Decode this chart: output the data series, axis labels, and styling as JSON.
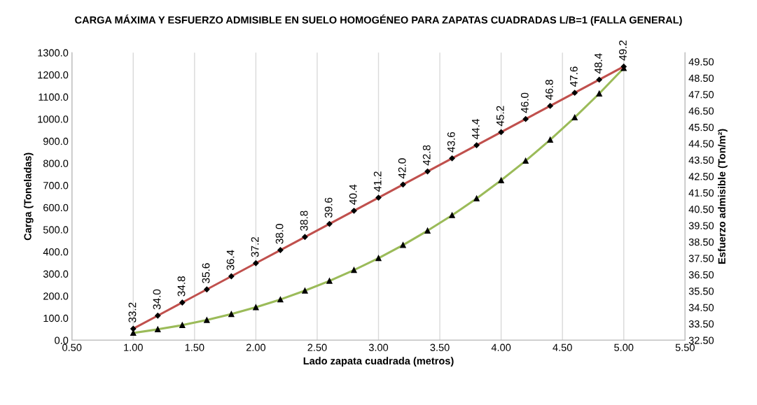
{
  "chart_data": {
    "type": "line",
    "title": "CARGA MÁXIMA Y ESFUERZO ADMISIBLE EN SUELO HOMOGÉNEO PARA ZAPATAS CUADRADAS L/B=1 (FALLA GENERAL)",
    "xlabel": "Lado zapata cuadrada (metros)",
    "ylabel": "Carga (Toneladas)",
    "y2label": "Esfuerzo admisible (Ton/m²)",
    "x": [
      1.0,
      1.2,
      1.4,
      1.6,
      1.8,
      2.0,
      2.2,
      2.4,
      2.6,
      2.8,
      3.0,
      3.2,
      3.4,
      3.6,
      3.8,
      4.0,
      4.2,
      4.4,
      4.6,
      4.8,
      5.0
    ],
    "series": [
      {
        "color": "#9bbb59",
        "marker": "triangle",
        "values": [
          33,
          49,
          68,
          91,
          118,
          149,
          184,
          224,
          268,
          317,
          371,
          430,
          495,
          565,
          641,
          723,
          811,
          906,
          1007,
          1115,
          1230
        ]
      },
      {
        "color": "#c0504d",
        "marker": "diamond",
        "axis": "y2",
        "value_labels": [
          "33.2",
          "34.0",
          "34.8",
          "35.6",
          "36.4",
          "37.2",
          "38.0",
          "38.8",
          "39.6",
          "40.4",
          "41.2",
          "42.0",
          "42.8",
          "43.6",
          "44.4",
          "45.2",
          "46.0",
          "46.8",
          "47.6",
          "48.4",
          "49.2"
        ],
        "values": [
          33.2,
          34.0,
          34.8,
          35.6,
          36.4,
          37.2,
          38.0,
          38.8,
          39.6,
          40.4,
          41.2,
          42.0,
          42.8,
          43.6,
          44.4,
          45.2,
          46.0,
          46.8,
          47.6,
          48.4,
          49.2
        ]
      }
    ],
    "xlim": [
      0.5,
      5.5
    ],
    "xticks": [
      {
        "value": 0.5,
        "label": "0.50"
      },
      {
        "value": 1.0,
        "label": "1.00"
      },
      {
        "value": 1.5,
        "label": "1.50"
      },
      {
        "value": 2.0,
        "label": "2.00"
      },
      {
        "value": 2.5,
        "label": "2.50"
      },
      {
        "value": 3.0,
        "label": "3.00"
      },
      {
        "value": 3.5,
        "label": "3.50"
      },
      {
        "value": 4.0,
        "label": "4.00"
      },
      {
        "value": 4.5,
        "label": "4.50"
      },
      {
        "value": 5.0,
        "label": "5.00"
      },
      {
        "value": 5.5,
        "label": "5.50"
      }
    ],
    "ylim": [
      0,
      1300
    ],
    "yticks": [
      {
        "value": 0,
        "label": "0.0"
      },
      {
        "value": 100,
        "label": "100.0"
      },
      {
        "value": 200,
        "label": "200.0"
      },
      {
        "value": 300,
        "label": "300.0"
      },
      {
        "value": 400,
        "label": "400.0"
      },
      {
        "value": 500,
        "label": "500.0"
      },
      {
        "value": 600,
        "label": "600.0"
      },
      {
        "value": 700,
        "label": "700.0"
      },
      {
        "value": 800,
        "label": "800.0"
      },
      {
        "value": 900,
        "label": "900.0"
      },
      {
        "value": 1000,
        "label": "1000.0"
      },
      {
        "value": 1100,
        "label": "1100.0"
      },
      {
        "value": 1200,
        "label": "1200.0"
      },
      {
        "value": 1300,
        "label": "1300.0"
      }
    ],
    "y2lim": [
      32.5,
      50.05
    ],
    "y2ticks": [
      {
        "value": 32.5,
        "label": "32.50"
      },
      {
        "value": 33.5,
        "label": "33.50"
      },
      {
        "value": 34.5,
        "label": "34.50"
      },
      {
        "value": 35.5,
        "label": "35.50"
      },
      {
        "value": 36.5,
        "label": "36.50"
      },
      {
        "value": 37.5,
        "label": "37.50"
      },
      {
        "value": 38.5,
        "label": "38.50"
      },
      {
        "value": 39.5,
        "label": "39.50"
      },
      {
        "value": 40.5,
        "label": "40.50"
      },
      {
        "value": 41.5,
        "label": "41.50"
      },
      {
        "value": 42.5,
        "label": "42.50"
      },
      {
        "value": 43.5,
        "label": "43.50"
      },
      {
        "value": 44.5,
        "label": "44.50"
      },
      {
        "value": 45.5,
        "label": "45.50"
      },
      {
        "value": 46.5,
        "label": "46.50"
      },
      {
        "value": 47.5,
        "label": "47.50"
      },
      {
        "value": 48.5,
        "label": "48.50"
      },
      {
        "value": 49.5,
        "label": "49.50"
      }
    ],
    "grid": "x",
    "line_style": "solid"
  }
}
